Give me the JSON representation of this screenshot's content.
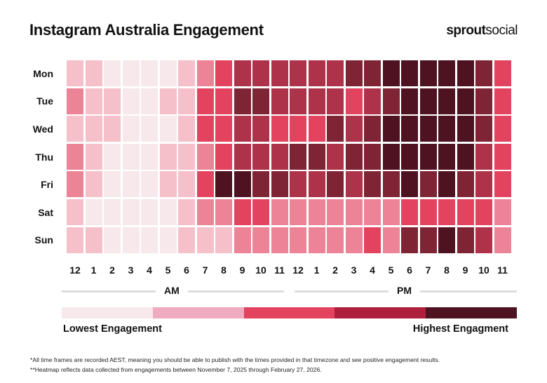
{
  "title": "Instagram Australia Engagement",
  "logo": {
    "part1": "sprout",
    "part2": "social"
  },
  "chart_data": {
    "type": "heatmap",
    "title": "Instagram Australia Engagement",
    "rows": [
      "Mon",
      "Tue",
      "Wed",
      "Thu",
      "Fri",
      "Sat",
      "Sun"
    ],
    "columns": [
      "12",
      "1",
      "2",
      "3",
      "4",
      "5",
      "6",
      "7",
      "8",
      "9",
      "10",
      "11",
      "12",
      "1",
      "2",
      "3",
      "4",
      "5",
      "6",
      "7",
      "8",
      "9",
      "10",
      "11"
    ],
    "column_groups": [
      {
        "label": "AM"
      },
      {
        "label": "PM"
      }
    ],
    "value_scale": "engagement level 1 (lowest) to 7 (highest)",
    "values": [
      [
        2,
        2,
        1,
        1,
        1,
        1,
        2,
        3,
        4,
        5,
        5,
        5,
        5,
        5,
        5,
        6,
        6,
        7,
        7,
        7,
        7,
        7,
        6,
        4
      ],
      [
        3,
        2,
        2,
        1,
        1,
        2,
        2,
        4,
        4,
        6,
        6,
        5,
        5,
        5,
        5,
        4,
        5,
        6,
        7,
        7,
        7,
        7,
        6,
        4
      ],
      [
        2,
        2,
        2,
        1,
        1,
        1,
        2,
        4,
        4,
        5,
        5,
        4,
        4,
        4,
        6,
        5,
        6,
        7,
        7,
        7,
        7,
        7,
        6,
        4
      ],
      [
        3,
        2,
        1,
        1,
        1,
        2,
        2,
        3,
        4,
        5,
        5,
        5,
        6,
        6,
        5,
        6,
        6,
        7,
        7,
        7,
        7,
        7,
        5,
        4
      ],
      [
        3,
        2,
        1,
        1,
        1,
        2,
        2,
        4,
        7,
        7,
        6,
        6,
        5,
        5,
        6,
        5,
        6,
        6,
        7,
        6,
        7,
        6,
        5,
        4
      ],
      [
        2,
        1,
        1,
        1,
        1,
        1,
        2,
        3,
        3,
        4,
        4,
        3,
        3,
        3,
        3,
        3,
        3,
        3,
        4,
        4,
        4,
        4,
        4,
        3
      ],
      [
        2,
        2,
        1,
        1,
        1,
        1,
        2,
        2,
        2,
        3,
        3,
        3,
        3,
        3,
        3,
        3,
        4,
        3,
        6,
        6,
        7,
        6,
        5,
        3
      ]
    ],
    "level_colors": [
      "#f7e8ec",
      "#f5c0ca",
      "#ec8396",
      "#e4435f",
      "#ae3249",
      "#7f2435",
      "#4f1220"
    ],
    "legend": {
      "low_label": "Lowest Engagement",
      "high_label": "Highest Engagment",
      "colors": [
        "#f7e8ec",
        "#efabbf",
        "#e4435f",
        "#ad1f3a",
        "#4f1220"
      ]
    }
  },
  "footnotes": [
    "*All time frames are recorded AEST, meaning you should be able to publish with the times provided in that timezone and see positive engagement results.",
    "**Heatmap reflects data collected from engagements between November 7, 2025 through February 27, 2026."
  ]
}
